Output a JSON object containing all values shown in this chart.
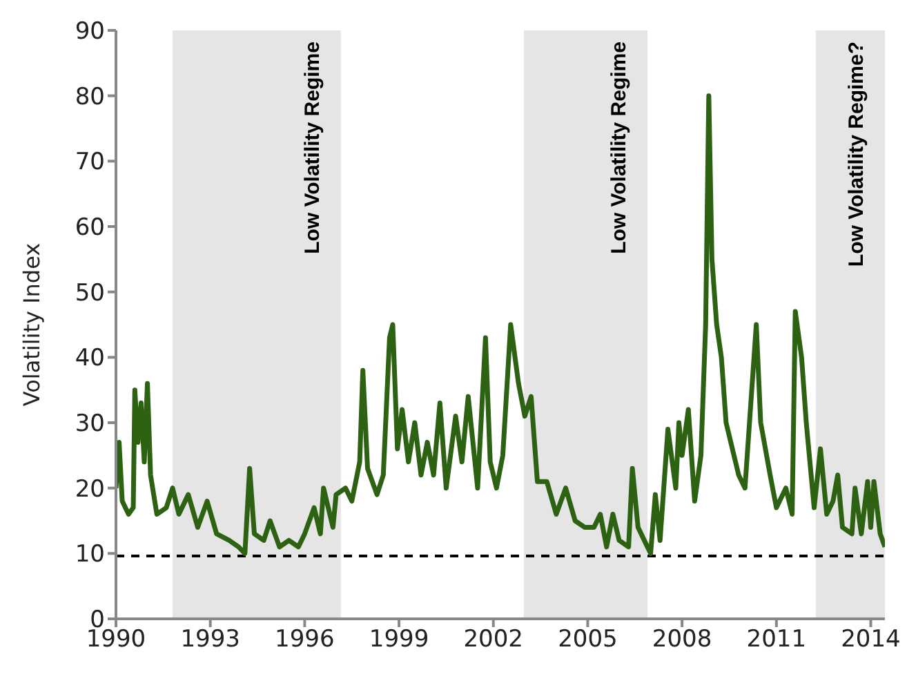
{
  "chart_data": {
    "type": "line",
    "ylabel": "Volatility Index",
    "x": [
      1990.0,
      1990.1,
      1990.2,
      1990.4,
      1990.55,
      1990.6,
      1990.7,
      1990.8,
      1990.9,
      1991.0,
      1991.1,
      1991.3,
      1991.6,
      1991.8,
      1992.0,
      1992.3,
      1992.6,
      1992.9,
      1993.2,
      1993.6,
      1993.9,
      1994.1,
      1994.25,
      1994.4,
      1994.7,
      1994.9,
      1995.2,
      1995.5,
      1995.8,
      1996.0,
      1996.3,
      1996.5,
      1996.6,
      1996.9,
      1997.0,
      1997.3,
      1997.5,
      1997.75,
      1997.85,
      1998.0,
      1998.3,
      1998.5,
      1998.7,
      1998.8,
      1998.95,
      1999.1,
      1999.3,
      1999.5,
      1999.7,
      1999.9,
      2000.1,
      2000.3,
      2000.5,
      2000.8,
      2001.0,
      2001.2,
      2001.5,
      2001.75,
      2001.9,
      2002.1,
      2002.3,
      2002.55,
      2002.8,
      2003.0,
      2003.2,
      2003.4,
      2003.7,
      2004.0,
      2004.3,
      2004.6,
      2004.9,
      2005.2,
      2005.4,
      2005.6,
      2005.8,
      2006.0,
      2006.3,
      2006.42,
      2006.6,
      2006.9,
      2007.0,
      2007.15,
      2007.3,
      2007.55,
      2007.8,
      2007.9,
      2008.0,
      2008.2,
      2008.4,
      2008.6,
      2008.75,
      2008.85,
      2008.95,
      2009.1,
      2009.25,
      2009.4,
      2009.6,
      2009.8,
      2010.0,
      2010.36,
      2010.5,
      2010.8,
      2011.0,
      2011.3,
      2011.5,
      2011.6,
      2011.8,
      2011.95,
      2012.2,
      2012.4,
      2012.6,
      2012.8,
      2012.95,
      2013.1,
      2013.4,
      2013.5,
      2013.7,
      2013.9,
      2014.0,
      2014.1,
      2014.3,
      2014.45
    ],
    "series": [
      {
        "color": "#2d6213",
        "values": [
          20,
          27,
          18,
          16,
          17,
          35,
          27,
          33,
          24,
          36,
          22,
          16,
          17,
          20,
          16,
          19,
          14,
          18,
          13,
          12,
          11,
          10,
          23,
          13,
          12,
          15,
          11,
          12,
          11,
          13,
          17,
          13,
          20,
          14,
          19,
          20,
          18,
          24,
          38,
          23,
          19,
          22,
          43,
          45,
          26,
          32,
          24,
          30,
          22,
          27,
          22,
          33,
          20,
          31,
          24,
          34,
          20,
          43,
          24,
          20,
          25,
          45,
          36,
          31,
          34,
          21,
          21,
          16,
          20,
          15,
          14,
          14,
          16,
          11,
          16,
          12,
          11,
          23,
          14,
          11,
          10,
          19,
          12,
          29,
          20,
          30,
          25,
          32,
          18,
          25,
          45,
          80,
          55,
          45,
          40,
          30,
          26,
          22,
          20,
          45,
          30,
          22,
          17,
          20,
          16,
          47,
          40,
          30,
          17,
          26,
          16,
          18,
          22,
          14,
          13,
          20,
          13,
          21,
          14,
          21,
          13,
          11
        ]
      }
    ],
    "xlim": [
      1990,
      2014.45
    ],
    "xticks": [
      1990,
      1993,
      1996,
      1999,
      2002,
      2005,
      2008,
      2011,
      2014
    ],
    "ylim": [
      0,
      90
    ],
    "yticks": [
      0,
      10,
      20,
      30,
      40,
      50,
      60,
      70,
      80,
      90
    ],
    "grid": false,
    "legend": false,
    "ref_lines": [
      {
        "axis": "y",
        "value": 9.6,
        "color": "#000000",
        "line_style": "dashed"
      }
    ],
    "bands": [
      {
        "axis": "x",
        "from": 1991.8,
        "to": 1997.15,
        "label": "Low Volatility Regime",
        "color": "#e5e5e5"
      },
      {
        "axis": "x",
        "from": 2002.97,
        "to": 2006.9,
        "label": "Low Volatility Regime",
        "color": "#e5e5e5"
      },
      {
        "axis": "x",
        "from": 2012.25,
        "to": 2014.45,
        "label": "Low Volatility Regime?",
        "color": "#e5e5e5"
      }
    ]
  }
}
